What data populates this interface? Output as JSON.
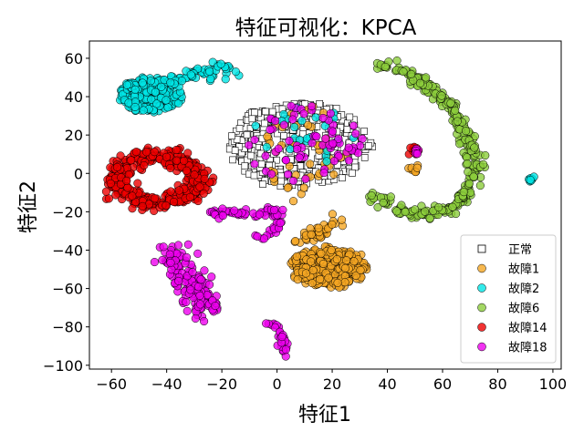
{
  "chart_data": {
    "type": "scatter",
    "title": "特征可视化：KPCA",
    "xlabel": "特征1",
    "ylabel": "特征2",
    "xlim": [
      -68,
      103
    ],
    "ylim": [
      -102,
      69
    ],
    "xticks": [
      -60,
      -40,
      -20,
      0,
      20,
      40,
      60,
      80,
      100
    ],
    "yticks": [
      -100,
      -80,
      -60,
      -40,
      -20,
      0,
      20,
      40,
      60
    ],
    "grid": false,
    "legend_position": "lower-right",
    "series": [
      {
        "name": "正常",
        "marker": "square",
        "color": "#ffffff",
        "edge": "#000000",
        "clusters": [
          {
            "shape": "blob",
            "cx": 8,
            "cy": 15,
            "rx": 26,
            "ry": 22,
            "n": 420
          }
        ]
      },
      {
        "name": "故障1",
        "marker": "circle",
        "color": "#f5a623",
        "edge": "#000000",
        "clusters": [
          {
            "shape": "blob",
            "cx": 19,
            "cy": -49,
            "rx": 14,
            "ry": 10,
            "n": 340
          },
          {
            "shape": "line",
            "points": [
              [
                5,
                -36
              ],
              [
                14,
                -32
              ],
              [
                22,
                -25
              ]
            ],
            "n": 40,
            "w": 2
          },
          {
            "shape": "blob",
            "cx": 50,
            "cy": 2,
            "rx": 2,
            "ry": 2,
            "n": 8
          },
          {
            "shape": "blob",
            "cx": 10,
            "cy": 10,
            "rx": 15,
            "ry": 25,
            "n": 45
          }
        ]
      },
      {
        "name": "故障2",
        "marker": "circle",
        "color": "#00e5e5",
        "edge": "#000000",
        "clusters": [
          {
            "shape": "blob",
            "cx": -46,
            "cy": 41,
            "rx": 11,
            "ry": 9,
            "n": 260
          },
          {
            "shape": "line",
            "points": [
              [
                -38,
                48
              ],
              [
                -30,
                52
              ],
              [
                -22,
                54
              ],
              [
                -15,
                55
              ]
            ],
            "n": 60,
            "w": 2
          },
          {
            "shape": "blob",
            "cx": 92,
            "cy": -3,
            "rx": 1.2,
            "ry": 1.2,
            "n": 8
          },
          {
            "shape": "blob",
            "cx": 10,
            "cy": 20,
            "rx": 18,
            "ry": 15,
            "n": 25
          }
        ]
      },
      {
        "name": "故障6",
        "marker": "circle",
        "color": "#8ccd3c",
        "edge": "#000000",
        "clusters": [
          {
            "shape": "line",
            "points": [
              [
                36,
                58
              ],
              [
                45,
                54
              ],
              [
                55,
                45
              ],
              [
                63,
                35
              ],
              [
                69,
                20
              ],
              [
                72,
                5
              ],
              [
                70,
                -8
              ],
              [
                64,
                -18
              ],
              [
                57,
                -21
              ],
              [
                48,
                -21
              ],
              [
                40,
                -16
              ],
              [
                34,
                -12
              ]
            ],
            "n": 300,
            "w": 1.4
          }
        ]
      },
      {
        "name": "故障14",
        "marker": "circle",
        "color": "#ee0000",
        "edge": "#000000",
        "clusters": [
          {
            "shape": "ring",
            "cx": -43,
            "cy": -3,
            "rx": 15,
            "ry": 12,
            "w": 4.5,
            "n": 420
          },
          {
            "shape": "blob",
            "cx": 50,
            "cy": 12,
            "rx": 2,
            "ry": 2,
            "n": 14
          }
        ]
      },
      {
        "name": "故障18",
        "marker": "circle",
        "color": "#ee00ee",
        "edge": "#000000",
        "clusters": [
          {
            "shape": "line",
            "points": [
              [
                -40,
                -39
              ],
              [
                -35,
                -50
              ],
              [
                -30,
                -60
              ],
              [
                -24,
                -71
              ]
            ],
            "n": 150,
            "w": 3.2
          },
          {
            "shape": "line",
            "points": [
              [
                -24,
                -20
              ],
              [
                -15,
                -21
              ],
              [
                -7,
                -21
              ],
              [
                -1,
                -19
              ],
              [
                1,
                -26
              ],
              [
                -3,
                -32
              ],
              [
                -8,
                -35
              ]
            ],
            "n": 70,
            "w": 1.2
          },
          {
            "shape": "line",
            "points": [
              [
                -2,
                -77
              ],
              [
                1,
                -85
              ],
              [
                3,
                -93
              ]
            ],
            "n": 26,
            "w": 1
          },
          {
            "shape": "blob",
            "cx": 10,
            "cy": 15,
            "rx": 22,
            "ry": 20,
            "n": 70
          },
          {
            "shape": "blob",
            "cx": 51,
            "cy": 11,
            "rx": 1.5,
            "ry": 1.5,
            "n": 5
          }
        ]
      }
    ]
  }
}
